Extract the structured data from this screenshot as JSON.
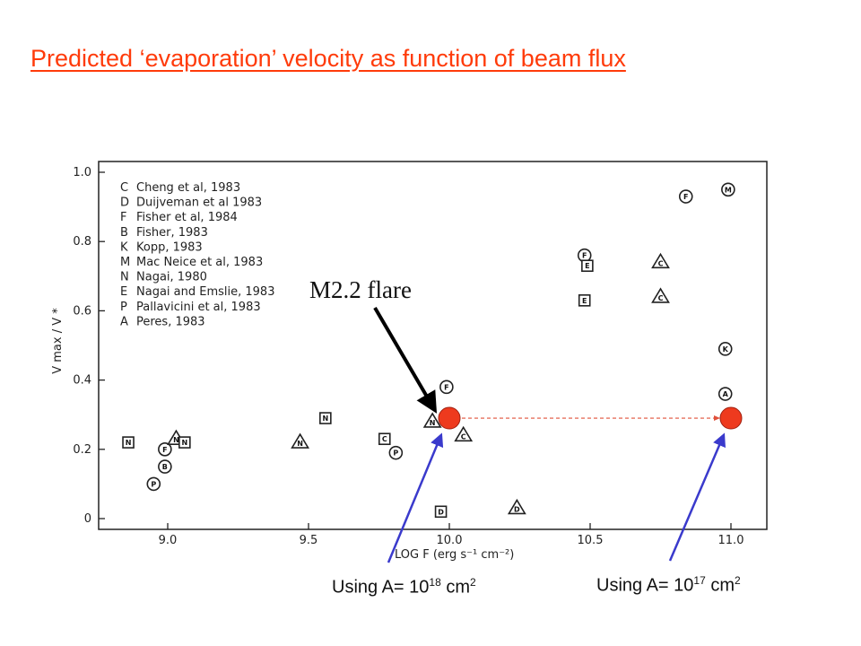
{
  "title": "Predicted ‘evaporation’ velocity as function of beam flux",
  "colors": {
    "title": "#ff3b0a",
    "marker_fill": "#ee3a1e",
    "dashed_line": "#e0503a",
    "blue_arrow": "#3a3acc",
    "black_arrow": "#000000"
  },
  "annotations": {
    "flare_label": "M2.2 flare",
    "using_a_1_prefix": "Using A= 10",
    "using_a_1_exp": "18",
    "using_a_1_unit": " cm",
    "using_a_1_unit_exp": "2",
    "using_a_2_prefix": "Using A= 10",
    "using_a_2_exp": "17",
    "using_a_2_unit": " cm",
    "using_a_2_unit_exp": "2"
  },
  "chart_data": {
    "type": "scatter",
    "xlabel": "LOG F (erg s⁻¹ cm⁻²)",
    "ylabel": "V max / V *",
    "xlim": [
      8.8,
      11.25
    ],
    "ylim": [
      0,
      1.0
    ],
    "xticks": [
      9.0,
      9.5,
      10.0,
      10.5,
      11.0
    ],
    "xtick_labels": [
      "9.0",
      "9.5",
      "10.0",
      "10.5",
      "11.0"
    ],
    "yticks": [
      0,
      0.2,
      0.4,
      0.6,
      0.8,
      1.0
    ],
    "ytick_labels": [
      "0",
      "0.2",
      "0.4",
      "0.6",
      "0.8",
      "1.0"
    ],
    "legend": [
      {
        "code": "C",
        "label": "Cheng et al, 1983"
      },
      {
        "code": "D",
        "label": "Duijveman et al 1983"
      },
      {
        "code": "F",
        "label": "Fisher et al, 1984"
      },
      {
        "code": "B",
        "label": "Fisher, 1983"
      },
      {
        "code": "K",
        "label": "Kopp, 1983"
      },
      {
        "code": "M",
        "label": "Mac Neice et al, 1983"
      },
      {
        "code": "N",
        "label": "Nagai, 1980"
      },
      {
        "code": "E",
        "label": "Nagai and Emslie, 1983"
      },
      {
        "code": "P",
        "label": "Pallavicini et al, 1983"
      },
      {
        "code": "A",
        "label": "Peres, 1983"
      }
    ],
    "points": [
      {
        "x": 8.86,
        "y": 0.22,
        "letter": "N",
        "shape": "square"
      },
      {
        "x": 8.95,
        "y": 0.1,
        "letter": "P",
        "shape": "circle"
      },
      {
        "x": 8.99,
        "y": 0.2,
        "letter": "F",
        "shape": "circle"
      },
      {
        "x": 8.99,
        "y": 0.15,
        "letter": "B",
        "shape": "circle"
      },
      {
        "x": 9.03,
        "y": 0.23,
        "letter": "N",
        "shape": "triangle"
      },
      {
        "x": 9.06,
        "y": 0.22,
        "letter": "N",
        "shape": "square"
      },
      {
        "x": 9.47,
        "y": 0.22,
        "letter": "N",
        "shape": "triangle"
      },
      {
        "x": 9.56,
        "y": 0.29,
        "letter": "N",
        "shape": "square"
      },
      {
        "x": 9.77,
        "y": 0.23,
        "letter": "C",
        "shape": "square"
      },
      {
        "x": 9.81,
        "y": 0.19,
        "letter": "P",
        "shape": "circle"
      },
      {
        "x": 9.94,
        "y": 0.28,
        "letter": "N",
        "shape": "triangle"
      },
      {
        "x": 9.99,
        "y": 0.38,
        "letter": "F",
        "shape": "circle"
      },
      {
        "x": 9.97,
        "y": 0.02,
        "letter": "D",
        "shape": "square"
      },
      {
        "x": 10.05,
        "y": 0.24,
        "letter": "C",
        "shape": "triangle"
      },
      {
        "x": 10.24,
        "y": 0.03,
        "letter": "D",
        "shape": "triangle"
      },
      {
        "x": 10.48,
        "y": 0.76,
        "letter": "F",
        "shape": "circle"
      },
      {
        "x": 10.49,
        "y": 0.73,
        "letter": "E",
        "shape": "square"
      },
      {
        "x": 10.48,
        "y": 0.63,
        "letter": "E",
        "shape": "square"
      },
      {
        "x": 10.75,
        "y": 0.74,
        "letter": "C",
        "shape": "triangle"
      },
      {
        "x": 10.75,
        "y": 0.64,
        "letter": "C",
        "shape": "triangle"
      },
      {
        "x": 10.84,
        "y": 0.93,
        "letter": "F",
        "shape": "circle"
      },
      {
        "x": 10.99,
        "y": 0.95,
        "letter": "M",
        "shape": "circle"
      },
      {
        "x": 10.98,
        "y": 0.49,
        "letter": "K",
        "shape": "circle"
      },
      {
        "x": 10.98,
        "y": 0.36,
        "letter": "A",
        "shape": "circle"
      }
    ],
    "highlight_points": [
      {
        "x": 10.0,
        "y": 0.29
      },
      {
        "x": 11.0,
        "y": 0.29
      }
    ]
  }
}
